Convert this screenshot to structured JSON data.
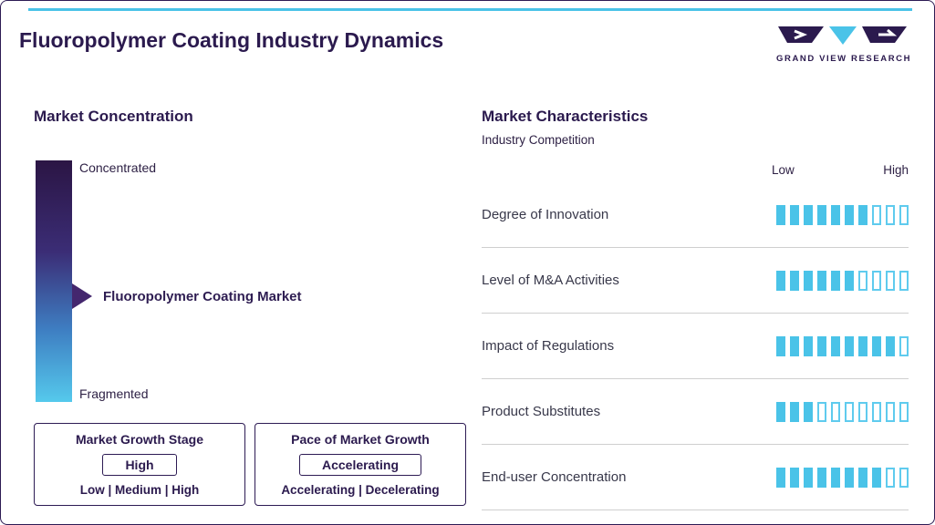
{
  "page": {
    "title": "Fluoropolymer Coating Industry Dynamics",
    "brand": {
      "name": "GRAND VIEW RESEARCH"
    }
  },
  "colors": {
    "navy": "#2b1a4e",
    "cyan": "#4ac3e8",
    "divider": "#cfcfcf"
  },
  "market_concentration": {
    "heading": "Market Concentration",
    "scale_top": "Concentrated",
    "scale_bottom": "Fragmented",
    "pointer_label": "Fluoropolymer Coating Market",
    "growth_stage_box": {
      "title": "Market Growth Stage",
      "value": "High",
      "options": "Low | Medium | High"
    },
    "pace_box": {
      "title": "Pace of Market Growth",
      "value": "Accelerating",
      "options": "Accelerating | Decelerating"
    }
  },
  "market_characteristics": {
    "heading": "Market Characteristics",
    "subheading": "Industry Competition",
    "scale_low": "Low",
    "scale_high": "High",
    "rows": [
      {
        "label": "Degree of Innovation",
        "filled": 7,
        "total": 10
      },
      {
        "label": "Level of M&A Activities",
        "filled": 6,
        "total": 10
      },
      {
        "label": "Impact of Regulations",
        "filled": 9,
        "total": 10
      },
      {
        "label": "Product Substitutes",
        "filled": 3,
        "total": 10
      },
      {
        "label": "End-user Concentration",
        "filled": 8,
        "total": 10
      }
    ]
  },
  "chart_data": {
    "type": "bar",
    "title": "Market Characteristics — Industry Competition",
    "categories": [
      "Degree of Innovation",
      "Level of M&A Activities",
      "Impact of Regulations",
      "Product Substitutes",
      "End-user Concentration"
    ],
    "values": [
      7,
      6,
      9,
      3,
      8
    ],
    "scale": {
      "min_label": "Low",
      "max_label": "High",
      "max": 10
    },
    "legend_position": "none",
    "grid": false
  }
}
